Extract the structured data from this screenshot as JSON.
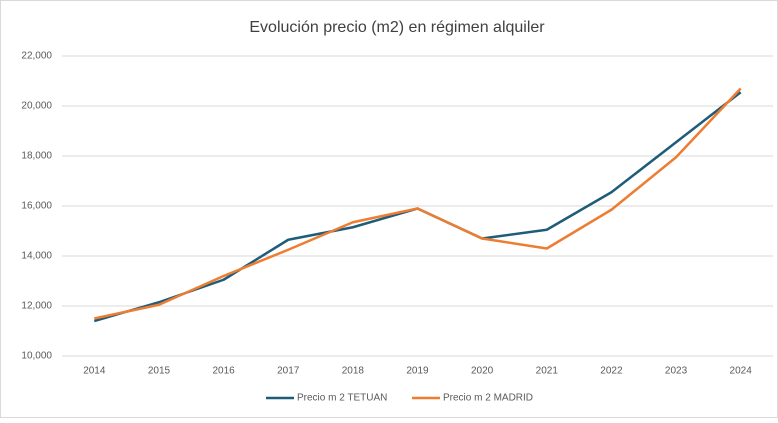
{
  "chart_data": {
    "type": "line",
    "title": "Evolución precio (m2) en régimen alquiler",
    "categories": [
      "2014",
      "2015",
      "2016",
      "2017",
      "2018",
      "2019",
      "2020",
      "2021",
      "2022",
      "2023",
      "2024"
    ],
    "series": [
      {
        "name": "Precio m 2 TETUAN",
        "color": "#1f5c7a",
        "values": [
          11400,
          12150,
          13050,
          14650,
          15150,
          15900,
          14700,
          15050,
          16550,
          18550,
          20550
        ]
      },
      {
        "name": "Precio m 2 MADRID",
        "color": "#ed7d31",
        "values": [
          11500,
          12050,
          13200,
          14250,
          15350,
          15900,
          14700,
          14300,
          15850,
          17950,
          20700
        ]
      }
    ],
    "ylim": [
      10000,
      22000
    ],
    "yticks": [
      {
        "value": 10000,
        "label": "10,000"
      },
      {
        "value": 12000,
        "label": "12,000"
      },
      {
        "value": 14000,
        "label": "14,000"
      },
      {
        "value": 16000,
        "label": "16,000"
      },
      {
        "value": 18000,
        "label": "18,000"
      },
      {
        "value": 20000,
        "label": "20,000"
      },
      {
        "value": 22000,
        "label": "22,000"
      }
    ],
    "grid": true,
    "legend": "bottom"
  }
}
